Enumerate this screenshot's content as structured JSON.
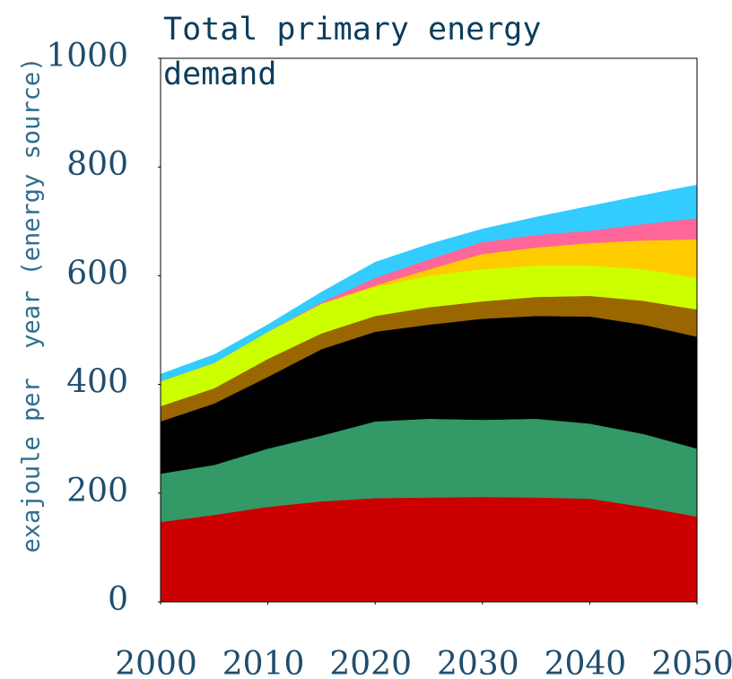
{
  "chart_data": {
    "type": "stacked_area",
    "title": "Total primary energy demand",
    "y_label": "exajoule per  year (energy source)",
    "x": [
      2000,
      2005,
      2010,
      2015,
      2020,
      2025,
      2030,
      2035,
      2040,
      2045,
      2050
    ],
    "series": [
      {
        "color": "#cc0000",
        "values": [
          147,
          160,
          175,
          185,
          191,
          192,
          193,
          192,
          190,
          175,
          157
        ]
      },
      {
        "color": "#339966",
        "values": [
          89,
          92,
          107,
          121,
          141,
          145,
          142,
          145,
          138,
          134,
          125
        ]
      },
      {
        "color": "#000000",
        "values": [
          96,
          113,
          132,
          159,
          165,
          173,
          186,
          189,
          197,
          201,
          206
        ]
      },
      {
        "color": "#996600",
        "values": [
          28,
          28,
          33,
          29,
          29,
          32,
          32,
          35,
          38,
          44,
          50
        ]
      },
      {
        "color": "#ccff00",
        "values": [
          46,
          47,
          50,
          54,
          53,
          58,
          59,
          58,
          56,
          58,
          58
        ]
      },
      {
        "color": "#ffcc00",
        "values": [
          0,
          0,
          0,
          1,
          3,
          12,
          28,
          33,
          41,
          53,
          71
        ]
      },
      {
        "color": "#ff6699",
        "values": [
          0,
          0,
          0,
          2,
          14,
          18,
          22,
          23,
          23,
          30,
          39
        ]
      },
      {
        "color": "#33ccff",
        "values": [
          13,
          15,
          13,
          19,
          29,
          28,
          24,
          33,
          45,
          53,
          61
        ]
      }
    ],
    "xlim": [
      2000,
      2050
    ],
    "xticks": [
      2000,
      2010,
      2020,
      2030,
      2040,
      2050
    ],
    "ylim": [
      0,
      1000
    ],
    "yticks": [
      0,
      200,
      400,
      600,
      800,
      1000
    ]
  }
}
